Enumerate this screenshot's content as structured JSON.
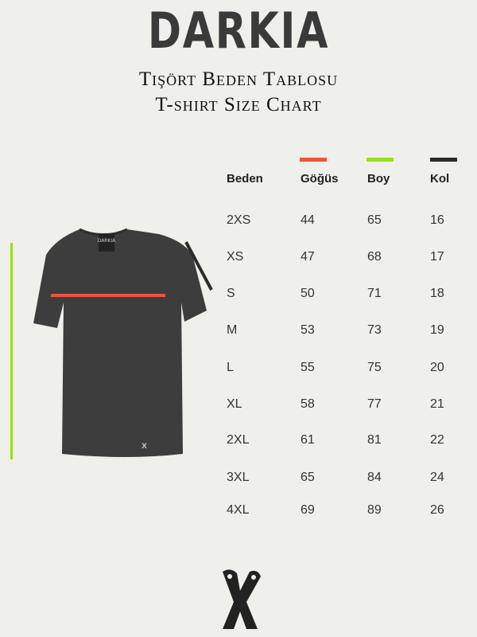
{
  "brand": "DARKIA",
  "title_tr": "Tişört Beden Tablosu",
  "title_en": "T-shirt Size Chart",
  "colors": {
    "gogus": "#f0523f",
    "boy": "#97e01a",
    "kol": "#2b2b2b",
    "shirt": "#3d3d3d"
  },
  "table": {
    "headers": [
      "Beden",
      "Göğüs",
      "Boy",
      "Kol"
    ],
    "rows": [
      [
        "2XS",
        "44",
        "65",
        "16"
      ],
      [
        "XS",
        "47",
        "68",
        "17"
      ],
      [
        "S",
        "50",
        "71",
        "18"
      ],
      [
        "M",
        "53",
        "73",
        "19"
      ],
      [
        "L",
        "55",
        "75",
        "20"
      ],
      [
        "XL",
        "58",
        "77",
        "21"
      ],
      [
        "2XL",
        "61",
        "81",
        "22"
      ],
      [
        "3XL",
        "65",
        "84",
        "24"
      ],
      [
        "4XL",
        "69",
        "89",
        "26"
      ]
    ]
  },
  "footer_icon": "x-logo-icon"
}
